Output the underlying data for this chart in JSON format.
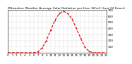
{
  "title": "Milwaukee Weather Average Solar Radiation per Hour W/m2 (Last 24 Hours)",
  "hours": [
    0,
    1,
    2,
    3,
    4,
    5,
    6,
    7,
    8,
    9,
    10,
    11,
    12,
    13,
    14,
    15,
    16,
    17,
    18,
    19,
    20,
    21,
    22,
    23
  ],
  "values": [
    0,
    0,
    0,
    0,
    0,
    0,
    0,
    15,
    80,
    200,
    370,
    530,
    640,
    680,
    640,
    550,
    400,
    240,
    90,
    20,
    0,
    0,
    0,
    0
  ],
  "line_color": "#dd0000",
  "line_style": "--",
  "line_width": 0.8,
  "marker": ".",
  "marker_size": 1.5,
  "grid_color": "#999999",
  "grid_style": ":",
  "background_color": "#ffffff",
  "ylim": [
    0,
    700
  ],
  "xlim": [
    0,
    23
  ],
  "yticks": [
    100,
    200,
    300,
    400,
    500,
    600,
    700
  ],
  "xtick_fontsize": 3.0,
  "ytick_fontsize": 3.0,
  "title_fontsize": 3.2
}
